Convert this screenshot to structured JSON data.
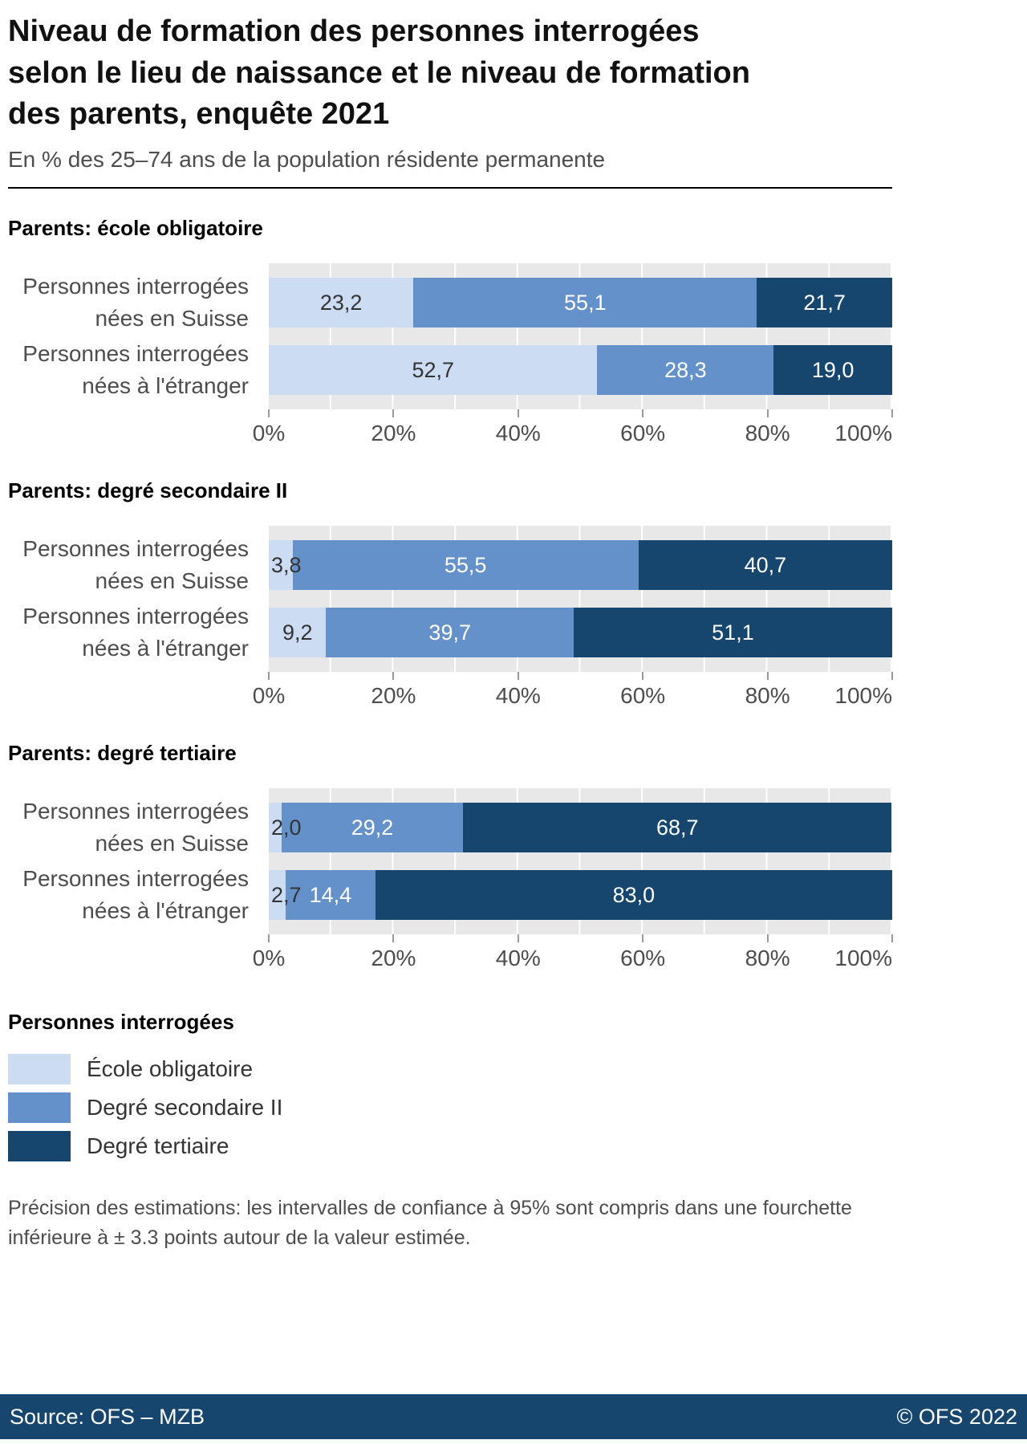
{
  "header": {
    "title_lines": [
      "Niveau de formation des personnes interrogées",
      "selon le lieu de naissance et le niveau de formation",
      "des parents, enquête 2021"
    ],
    "subtitle": "En % des 25–74 ans de la population résidente permanente"
  },
  "chart_data": {
    "type": "bar",
    "orientation": "horizontal",
    "stacked": true,
    "unit": "%",
    "xlim": [
      0,
      100
    ],
    "x_tick_labels": [
      "0%",
      "20%",
      "40%",
      "60%",
      "80%",
      "100%"
    ],
    "series_names": [
      "École obligatoire",
      "Degré secondaire II",
      "Degré tertiaire"
    ],
    "series_colors": [
      "#cbdcf3",
      "#6591cb",
      "#16466e"
    ],
    "groups": [
      {
        "heading": "Parents: école obligatoire",
        "rows": [
          {
            "label_lines": [
              "Personnes interrogées",
              "nées en Suisse"
            ],
            "values": [
              23.2,
              55.1,
              21.7
            ],
            "value_labels": [
              "23,2",
              "55,1",
              "21,7"
            ]
          },
          {
            "label_lines": [
              "Personnes interrogées",
              "nées à l'étranger"
            ],
            "values": [
              52.7,
              28.3,
              19.0
            ],
            "value_labels": [
              "52,7",
              "28,3",
              "19,0"
            ]
          }
        ]
      },
      {
        "heading": "Parents: degré secondaire II",
        "rows": [
          {
            "label_lines": [
              "Personnes interrogées",
              "nées en Suisse"
            ],
            "values": [
              3.8,
              55.5,
              40.7
            ],
            "value_labels": [
              "3,8",
              "55,5",
              "40,7"
            ]
          },
          {
            "label_lines": [
              "Personnes interrogées",
              "nées à l'étranger"
            ],
            "values": [
              9.2,
              39.7,
              51.1
            ],
            "value_labels": [
              "9,2",
              "39,7",
              "51,1"
            ]
          }
        ]
      },
      {
        "heading": "Parents: degré tertiaire",
        "rows": [
          {
            "label_lines": [
              "Personnes interrogées",
              "nées en Suisse"
            ],
            "values": [
              2.0,
              29.2,
              68.7
            ],
            "value_labels": [
              "2,0",
              "29,2",
              "68,7"
            ]
          },
          {
            "label_lines": [
              "Personnes interrogées",
              "nées à l'étranger"
            ],
            "values": [
              2.7,
              14.4,
              83.0
            ],
            "value_labels": [
              "2,7",
              "14,4",
              "83,0"
            ]
          }
        ]
      }
    ]
  },
  "legend": {
    "title": "Personnes interrogées",
    "entries": [
      {
        "label": "École obligatoire",
        "color": "#cbdcf3"
      },
      {
        "label": "Degré secondaire II",
        "color": "#6591cb"
      },
      {
        "label": "Degré tertiaire",
        "color": "#16466e"
      }
    ]
  },
  "note_lines": [
    "Précision des estimations: les intervalles de confiance à 95% sont compris dans une fourchette",
    "inférieure à ± 3.3 points autour de la valeur estimée."
  ],
  "footer": {
    "source": "Source: OFS – MZB",
    "copyright": "© OFS 2022"
  }
}
